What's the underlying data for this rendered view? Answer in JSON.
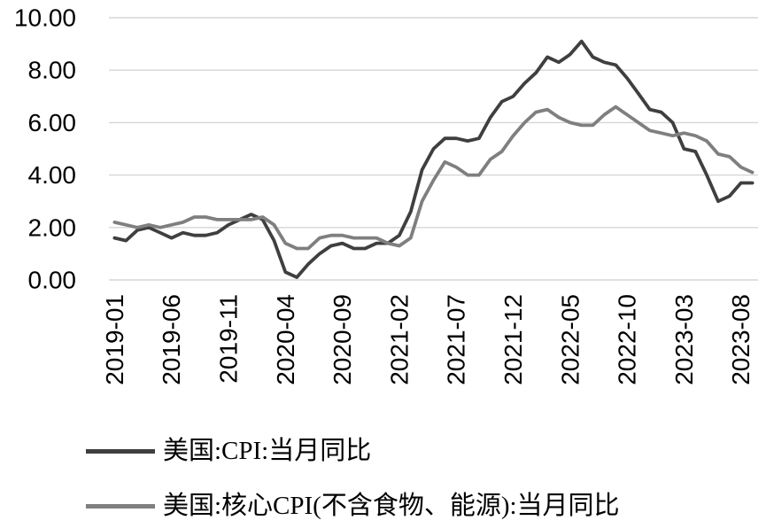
{
  "chart_data": {
    "type": "line",
    "title": "",
    "xlabel": "",
    "ylabel": "",
    "ylim": [
      0,
      10
    ],
    "grid": true,
    "legend_position": "bottom-left",
    "y_tick_labels": [
      "10.00",
      "8.00",
      "6.00",
      "4.00",
      "2.00",
      "0.00"
    ],
    "y_tick_values": [
      10,
      8,
      6,
      4,
      2,
      0
    ],
    "x_tick_labels": [
      "2019-01",
      "2019-06",
      "2019-11",
      "2020-04",
      "2020-09",
      "2021-02",
      "2021-07",
      "2021-12",
      "2022-05",
      "2022-10",
      "2023-03",
      "2023-08"
    ],
    "x_tick_interval": 5,
    "x_start": "2019-01",
    "x_end": "2023-09",
    "series": [
      {
        "name": "美国:CPI:当月同比",
        "color": "#3f3f3f",
        "values": [
          1.6,
          1.5,
          1.9,
          2.0,
          1.8,
          1.6,
          1.8,
          1.7,
          1.7,
          1.8,
          2.1,
          2.3,
          2.5,
          2.3,
          1.5,
          0.3,
          0.1,
          0.6,
          1.0,
          1.3,
          1.4,
          1.2,
          1.2,
          1.4,
          1.4,
          1.7,
          2.6,
          4.2,
          5.0,
          5.4,
          5.4,
          5.3,
          5.4,
          6.2,
          6.8,
          7.0,
          7.5,
          7.9,
          8.5,
          8.3,
          8.6,
          9.1,
          8.5,
          8.3,
          8.2,
          7.7,
          7.1,
          6.5,
          6.4,
          6.0,
          5.0,
          4.9,
          4.0,
          3.0,
          3.2,
          3.7,
          3.7
        ]
      },
      {
        "name": "美国:核心CPI(不含食物、能源):当月同比",
        "color": "#7f7f7f",
        "values": [
          2.2,
          2.1,
          2.0,
          2.1,
          2.0,
          2.1,
          2.2,
          2.4,
          2.4,
          2.3,
          2.3,
          2.3,
          2.3,
          2.4,
          2.1,
          1.4,
          1.2,
          1.2,
          1.6,
          1.7,
          1.7,
          1.6,
          1.6,
          1.6,
          1.4,
          1.3,
          1.6,
          3.0,
          3.8,
          4.5,
          4.3,
          4.0,
          4.0,
          4.6,
          4.9,
          5.5,
          6.0,
          6.4,
          6.5,
          6.2,
          6.0,
          5.9,
          5.9,
          6.3,
          6.6,
          6.3,
          6.0,
          5.7,
          5.6,
          5.5,
          5.6,
          5.5,
          5.3,
          4.8,
          4.7,
          4.3,
          4.1
        ]
      }
    ]
  },
  "colors": {
    "gridline": "#d6d6d6",
    "axis_text": "#000000",
    "background": "#ffffff"
  }
}
